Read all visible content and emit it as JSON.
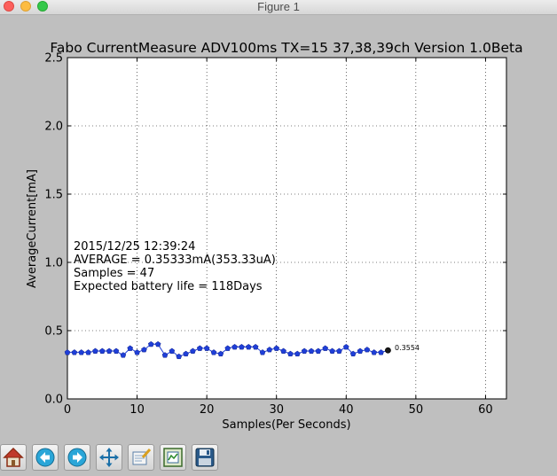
{
  "window": {
    "title": "Figure 1"
  },
  "chart_data": {
    "type": "line",
    "title": "Fabo CurrentMeasure ADV100ms TX=15 37,38,39ch Version 1.0Beta",
    "xlabel": "Samples(Per Seconds)",
    "ylabel": "AverageCurrent[mA]",
    "xlim": [
      0,
      63
    ],
    "ylim": [
      0,
      2.5
    ],
    "xticks": [
      "0",
      "10",
      "20",
      "30",
      "40",
      "50",
      "60"
    ],
    "yticks": [
      "0.0",
      "0.5",
      "1.0",
      "1.5",
      "2.0",
      "2.5"
    ],
    "grid": true,
    "series": [
      {
        "color": "#1f3fd8",
        "x": [
          0,
          1,
          2,
          3,
          4,
          5,
          6,
          7,
          8,
          9,
          10,
          11,
          12,
          13,
          14,
          15,
          16,
          17,
          18,
          19,
          20,
          21,
          22,
          23,
          24,
          25,
          26,
          27,
          28,
          29,
          30,
          31,
          32,
          33,
          34,
          35,
          36,
          37,
          38,
          39,
          40,
          41,
          42,
          43,
          44,
          45,
          46
        ],
        "values": [
          0.34,
          0.34,
          0.34,
          0.34,
          0.35,
          0.35,
          0.35,
          0.35,
          0.32,
          0.37,
          0.34,
          0.36,
          0.4,
          0.4,
          0.32,
          0.35,
          0.31,
          0.33,
          0.35,
          0.37,
          0.37,
          0.34,
          0.33,
          0.37,
          0.38,
          0.38,
          0.38,
          0.38,
          0.34,
          0.36,
          0.37,
          0.35,
          0.33,
          0.33,
          0.35,
          0.35,
          0.35,
          0.37,
          0.35,
          0.35,
          0.38,
          0.33,
          0.35,
          0.36,
          0.34,
          0.34,
          0.3554
        ]
      }
    ],
    "last_point_label": "0.3554",
    "annotation_lines": [
      "2015/12/25 12:39:24",
      "AVERAGE = 0.35333mA(353.33uA)",
      "Samples = 47",
      "Expected battery life = 118Days"
    ]
  },
  "toolbar": {
    "buttons": [
      "home-icon",
      "back-arrow-icon",
      "forward-arrow-icon",
      "pan-icon",
      "zoom-icon",
      "subplots-icon",
      "save-icon"
    ]
  }
}
